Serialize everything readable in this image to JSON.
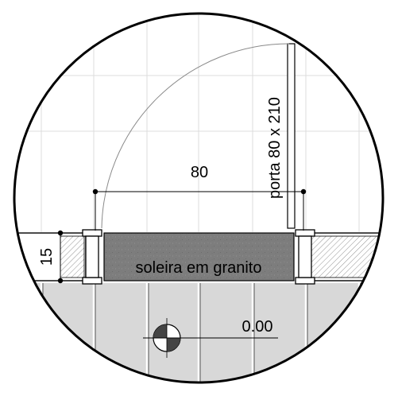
{
  "labels": {
    "door_width": "80",
    "door_spec": "porta 80 x 210",
    "wall_thickness": "15",
    "threshold": "soleira em granito",
    "level": "0.00"
  },
  "colors": {
    "floor": "#d8d8d8",
    "threshold": "#7d7d7d",
    "hatch": "#777777",
    "grid": "#dcdcdc",
    "outline": "#000000"
  }
}
